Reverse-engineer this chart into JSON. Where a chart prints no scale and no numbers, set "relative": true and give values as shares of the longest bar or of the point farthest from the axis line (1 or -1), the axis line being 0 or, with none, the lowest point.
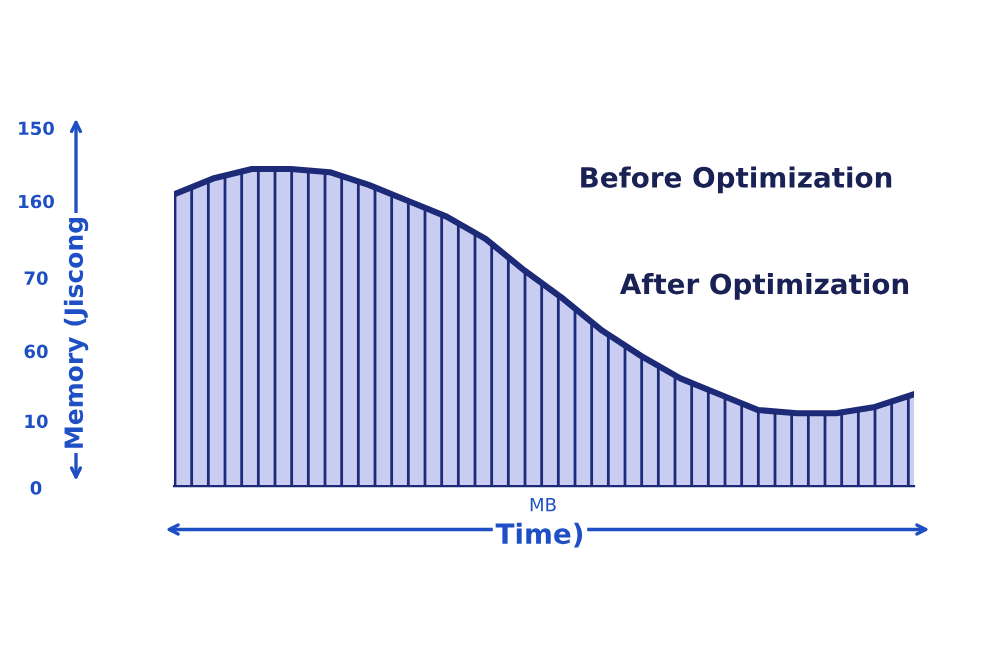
{
  "chart_data": {
    "type": "area",
    "relative": true,
    "ylabel": "Memory (Jiscong",
    "xlabel": "Time)",
    "categories": [
      null,
      null,
      null,
      null,
      null,
      null,
      null,
      null,
      null,
      null,
      null,
      null,
      null,
      null,
      null,
      null,
      null,
      null,
      null,
      null
    ],
    "series": [
      {
        "color": "#1c2a78",
        "values": [
          0.92,
          0.97,
          1.0,
          1.0,
          0.99,
          0.95,
          0.9,
          0.85,
          0.78,
          0.68,
          0.59,
          0.49,
          0.41,
          0.34,
          0.29,
          0.24,
          0.23,
          0.23,
          0.25,
          0.29
        ]
      }
    ],
    "annotations": [
      "Before Optimization",
      "After Optimization",
      "MB",
      "150",
      "160",
      "70",
      "60",
      "10",
      "0"
    ],
    "grid": false
  }
}
